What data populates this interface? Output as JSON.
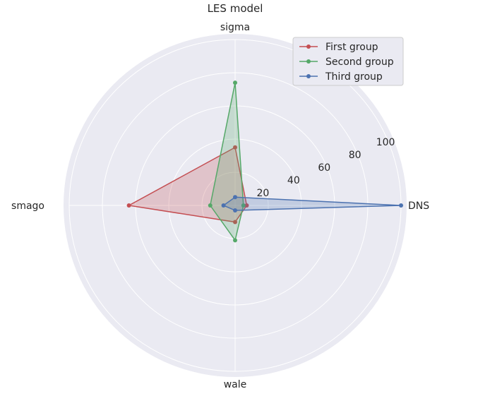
{
  "chart_data": {
    "type": "radar",
    "title": "LES model",
    "axes": [
      "DNS",
      "sigma",
      "smago",
      "wale"
    ],
    "rlim": [
      0,
      100
    ],
    "r_ticks": [
      20,
      40,
      60,
      80,
      100
    ],
    "r_tick_labels": [
      "20",
      "40",
      "60",
      "80",
      "100"
    ],
    "grid": true,
    "legend_position": "top-right",
    "series": [
      {
        "name": "First group",
        "values": [
          7,
          35,
          64,
          10
        ],
        "color": "#c44e52"
      },
      {
        "name": "Second group",
        "values": [
          5,
          74,
          15,
          21
        ],
        "color": "#55a868"
      },
      {
        "name": "Third group",
        "values": [
          100,
          5,
          7,
          3
        ],
        "color": "#4c72b0"
      }
    ]
  }
}
